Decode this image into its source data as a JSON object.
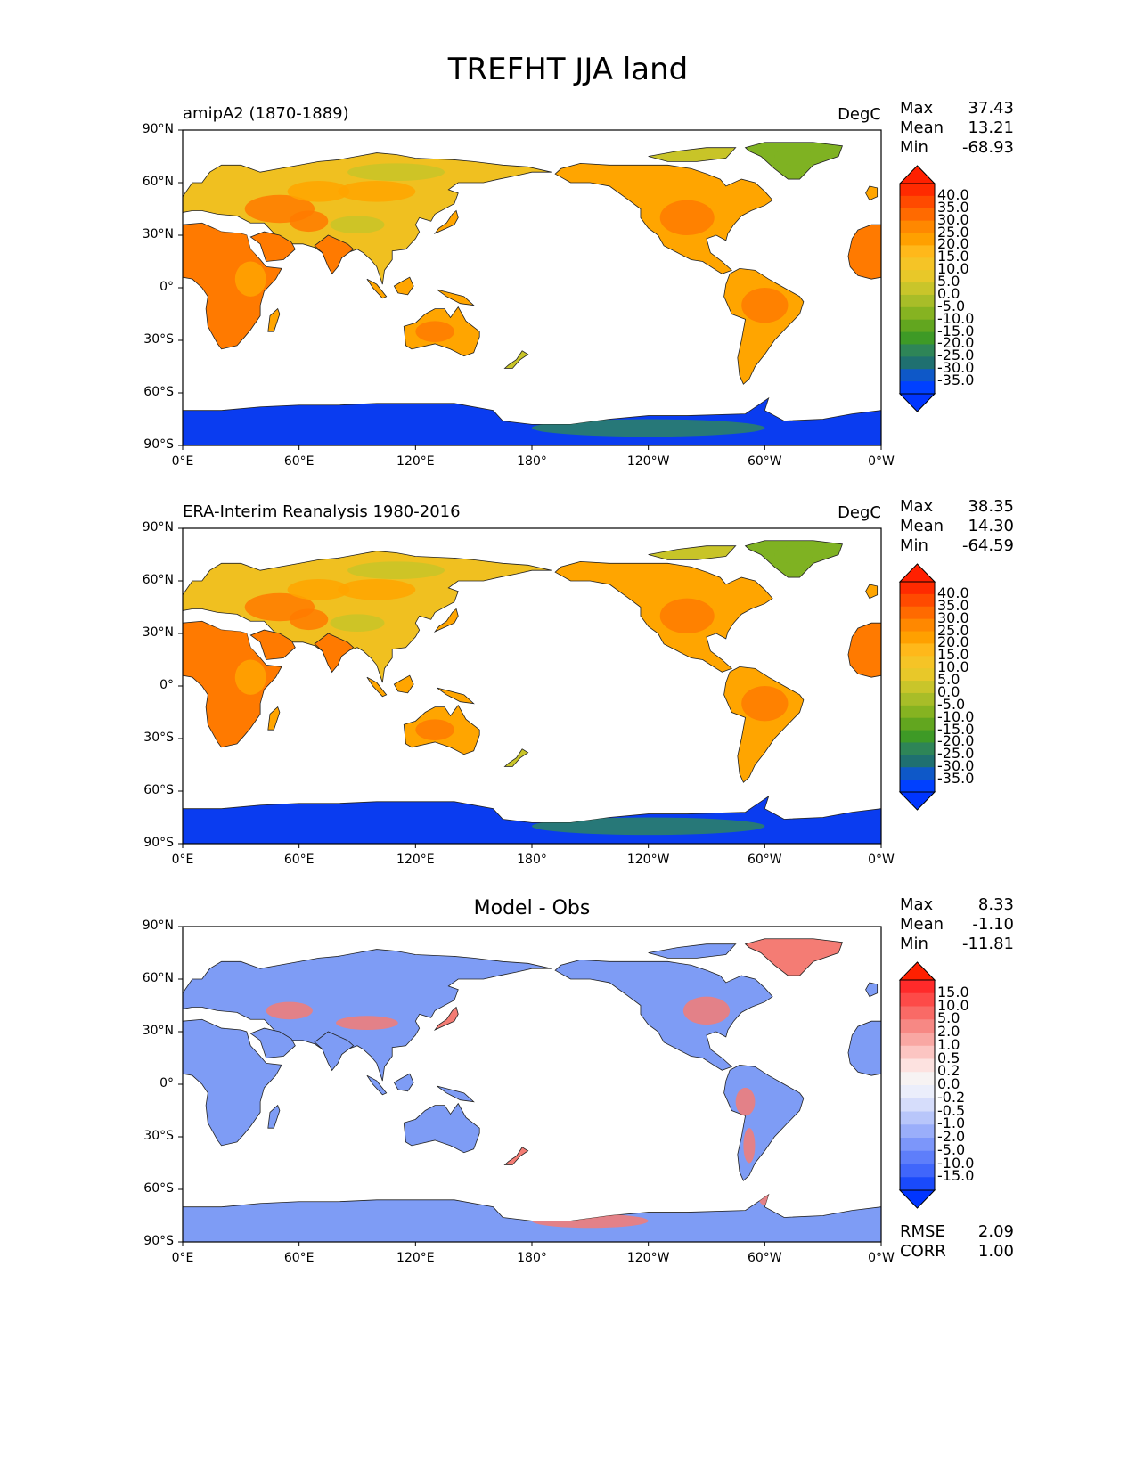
{
  "figure_title": "TREFHT JJA land",
  "x_ticks": [
    "0°E",
    "60°E",
    "120°E",
    "180°",
    "120°W",
    "60°W",
    "0°W"
  ],
  "y_ticks": [
    "90°N",
    "60°N",
    "30°N",
    "0°",
    "30°S",
    "60°S",
    "90°S"
  ],
  "panels": [
    {
      "id": "test",
      "title_left": "amipA2 (1870-1889)",
      "title_center": "",
      "units": "DegC",
      "stats": [
        {
          "label": "Max",
          "value": "37.43"
        },
        {
          "label": "Mean",
          "value": "13.21"
        },
        {
          "label": "Min",
          "value": "-68.93"
        }
      ],
      "extra_stats": [],
      "colorbar": {
        "labels": [
          "40.0",
          "35.0",
          "30.0",
          "25.0",
          "20.0",
          "15.0",
          "10.0",
          "5.0",
          "0.0",
          "-5.0",
          "-10.0",
          "-15.0",
          "-20.0",
          "-25.0",
          "-30.0",
          "-35.0"
        ],
        "colors": [
          "#ff2a00",
          "#ff4a00",
          "#ff6a00",
          "#ff8800",
          "#ffa000",
          "#ffb81a",
          "#f5c426",
          "#e8c829",
          "#c9c52a",
          "#a8bd28",
          "#86b321",
          "#62a61f",
          "#3e9a26",
          "#2e8557",
          "#1f7070",
          "#0e58c8",
          "#0040ff"
        ],
        "over_color": "#ff2000",
        "under_color": "#0035ff"
      }
    },
    {
      "id": "reference",
      "title_left": "ERA-Interim Reanalysis 1980-2016",
      "title_center": "",
      "units": "DegC",
      "stats": [
        {
          "label": "Max",
          "value": "38.35"
        },
        {
          "label": "Mean",
          "value": "14.30"
        },
        {
          "label": "Min",
          "value": "-64.59"
        }
      ],
      "extra_stats": [],
      "colorbar": {
        "labels": [
          "40.0",
          "35.0",
          "30.0",
          "25.0",
          "20.0",
          "15.0",
          "10.0",
          "5.0",
          "0.0",
          "-5.0",
          "-10.0",
          "-15.0",
          "-20.0",
          "-25.0",
          "-30.0",
          "-35.0"
        ],
        "colors": [
          "#ff2a00",
          "#ff4a00",
          "#ff6a00",
          "#ff8800",
          "#ffa000",
          "#ffb81a",
          "#f5c426",
          "#e8c829",
          "#c9c52a",
          "#a8bd28",
          "#86b321",
          "#62a61f",
          "#3e9a26",
          "#2e8557",
          "#1f7070",
          "#0e58c8",
          "#0040ff"
        ],
        "over_color": "#ff2000",
        "under_color": "#0035ff"
      }
    },
    {
      "id": "diff",
      "title_left": "",
      "title_center": "Model - Obs",
      "units": "",
      "stats": [
        {
          "label": "Max",
          "value": "8.33"
        },
        {
          "label": "Mean",
          "value": "-1.10"
        },
        {
          "label": "Min",
          "value": "-11.81"
        }
      ],
      "extra_stats": [
        {
          "label": "RMSE",
          "value": "2.09"
        },
        {
          "label": "CORR",
          "value": "1.00"
        }
      ],
      "colorbar": {
        "labels": [
          "15.0",
          "10.0",
          "5.0",
          "2.0",
          "1.0",
          "0.5",
          "0.2",
          "0.0",
          "-0.2",
          "-0.5",
          "-1.0",
          "-2.0",
          "-5.0",
          "-10.0",
          "-15.0"
        ],
        "colors": [
          "#ff2a2a",
          "#fd4a48",
          "#f96a66",
          "#f78884",
          "#f9a7a3",
          "#fcc5c2",
          "#fde2e0",
          "#f7f3f3",
          "#ebeefb",
          "#d6ddfb",
          "#b8c6fa",
          "#9aaefa",
          "#7c96fa",
          "#5e7efa",
          "#4066fb",
          "#1a4afb"
        ],
        "over_color": "#ff2000",
        "under_color": "#0035ff"
      }
    }
  ],
  "colors": {
    "land_hot": "#ff7a00",
    "land_warm": "#ffa500",
    "land_mild": "#f0c020",
    "land_cool": "#c8c428",
    "land_cold": "#7fb222",
    "antarctic": "#0a3cf0",
    "antarctic_coast": "#2a7e6a",
    "diff_blue": "#7e9cf5",
    "diff_red": "#f47c74"
  }
}
